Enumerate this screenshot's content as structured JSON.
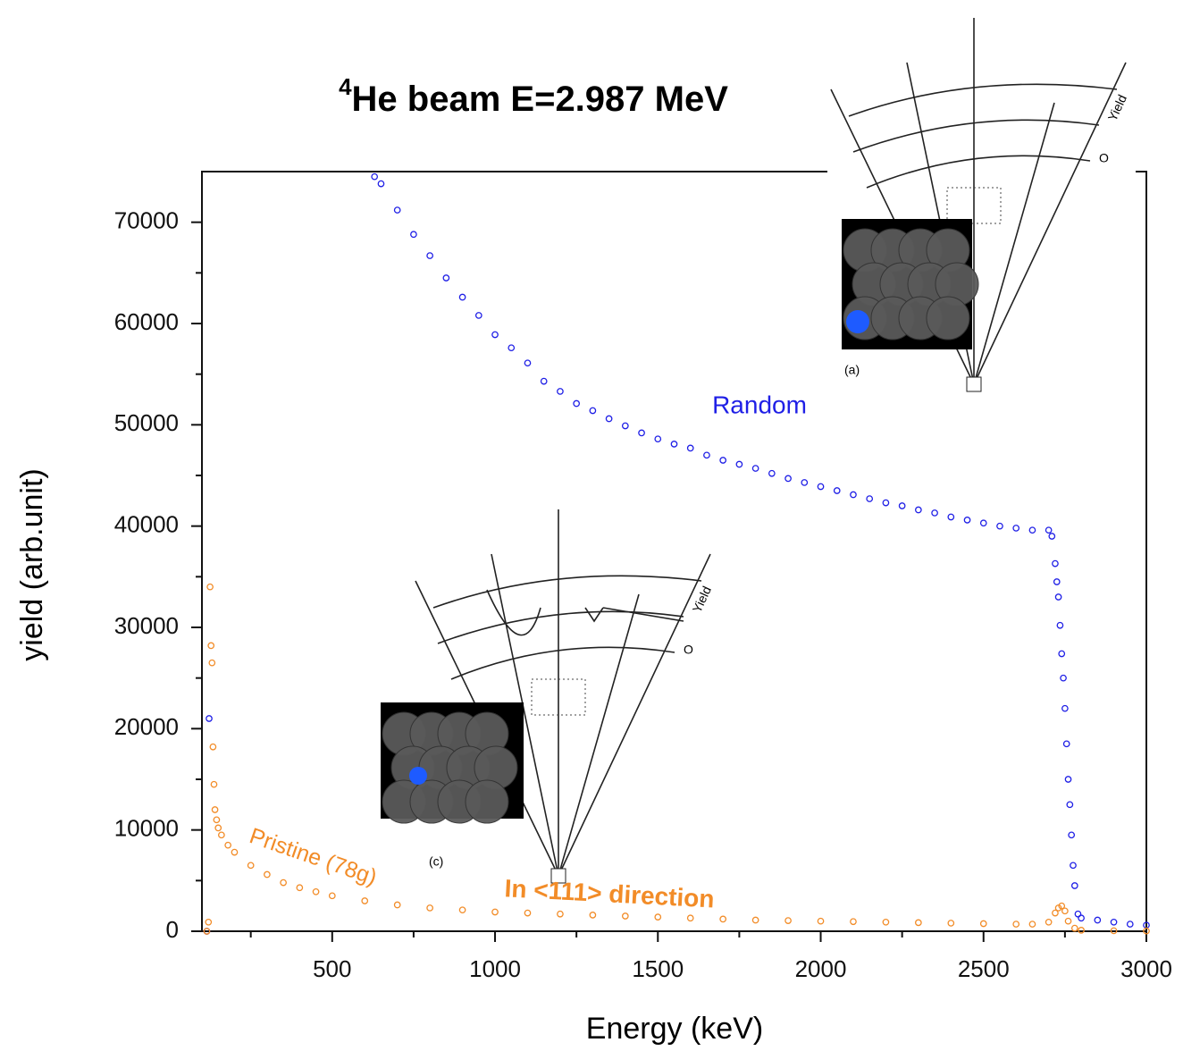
{
  "chart_data": {
    "type": "scatter",
    "title_superscript": "4",
    "title": "He beam E=2.987 MeV",
    "x_label": "Energy (keV)",
    "y_label": "yield (arb.unit)",
    "xlim": [
      100,
      3000
    ],
    "ylim": [
      0,
      75000
    ],
    "xticks": [
      500,
      1000,
      1500,
      2000,
      2500,
      3000
    ],
    "xticks_minor": [
      250,
      750,
      1250,
      1750,
      2250,
      2750
    ],
    "yticks": [
      0,
      10000,
      20000,
      30000,
      40000,
      50000,
      60000,
      70000
    ],
    "yticks_minor": [
      5000,
      15000,
      25000,
      35000,
      45000,
      55000,
      65000
    ],
    "series": [
      {
        "name": "Random",
        "color": "#1f1fe6",
        "x": [
          115,
          122,
          630,
          650,
          700,
          750,
          800,
          850,
          900,
          950,
          1000,
          1050,
          1100,
          1150,
          1200,
          1250,
          1300,
          1350,
          1400,
          1450,
          1500,
          1550,
          1600,
          1650,
          1700,
          1750,
          1800,
          1850,
          1900,
          1950,
          2000,
          2050,
          2100,
          2150,
          2200,
          2250,
          2300,
          2350,
          2400,
          2450,
          2500,
          2550,
          2600,
          2650,
          2700,
          2710,
          2720,
          2725,
          2730,
          2735,
          2740,
          2745,
          2750,
          2755,
          2760,
          2765,
          2770,
          2775,
          2780,
          2790,
          2800,
          2850,
          2900,
          2950,
          3000
        ],
        "values": [
          0,
          21000,
          74500,
          73800,
          71200,
          68800,
          66700,
          64500,
          62600,
          60800,
          58900,
          57600,
          56100,
          54300,
          53300,
          52100,
          51400,
          50600,
          49900,
          49200,
          48600,
          48100,
          47700,
          47000,
          46500,
          46100,
          45700,
          45200,
          44700,
          44300,
          43900,
          43500,
          43100,
          42700,
          42300,
          42000,
          41600,
          41300,
          40900,
          40600,
          40300,
          40000,
          39800,
          39600,
          39600,
          39000,
          36300,
          34500,
          33000,
          30200,
          27400,
          25000,
          22000,
          18500,
          15000,
          12500,
          9500,
          6500,
          4500,
          1700,
          1300,
          1100,
          900,
          700,
          600
        ]
      },
      {
        "name": "Pristine (78g)",
        "color": "#f28c28",
        "x": [
          115,
          120,
          125,
          128,
          131,
          134,
          137,
          140,
          145,
          150,
          160,
          180,
          200,
          250,
          300,
          350,
          400,
          450,
          500,
          600,
          700,
          800,
          900,
          1000,
          1100,
          1200,
          1300,
          1400,
          1500,
          1600,
          1700,
          1800,
          1900,
          2000,
          2100,
          2200,
          2300,
          2400,
          2500,
          2600,
          2650,
          2700,
          2720,
          2730,
          2740,
          2750,
          2760,
          2780,
          2800,
          2900,
          3000
        ],
        "values": [
          0,
          900,
          34000,
          28200,
          26500,
          18200,
          14500,
          12000,
          11000,
          10200,
          9500,
          8500,
          7800,
          6500,
          5600,
          4800,
          4300,
          3900,
          3500,
          3000,
          2600,
          2300,
          2100,
          1900,
          1800,
          1700,
          1600,
          1500,
          1400,
          1300,
          1200,
          1100,
          1050,
          1000,
          950,
          900,
          850,
          800,
          750,
          700,
          700,
          900,
          1800,
          2300,
          2500,
          2000,
          1000,
          300,
          100,
          50,
          30
        ]
      }
    ],
    "annotations": [
      {
        "text": "In <111> direction",
        "color": "#f28c28"
      }
    ],
    "insets": [
      {
        "label": "(a)",
        "axis_label": "Yield",
        "origin_label": "O"
      },
      {
        "label": "(c)",
        "axis_label": "Yield",
        "origin_label": "O"
      }
    ]
  }
}
